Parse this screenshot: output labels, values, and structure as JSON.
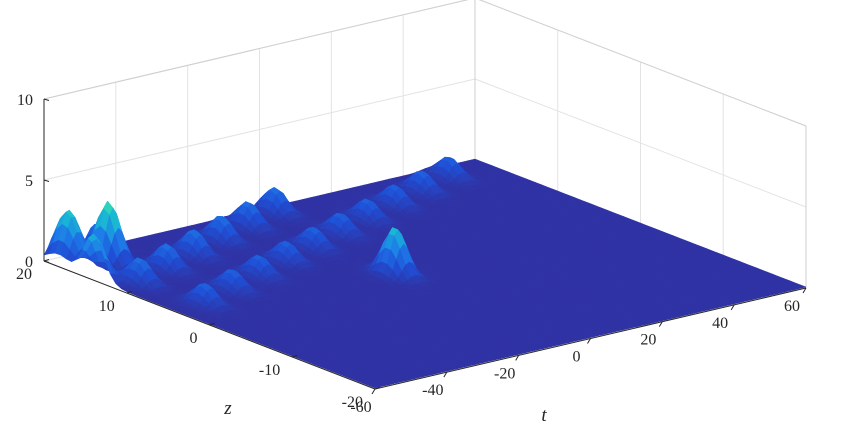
{
  "chart_data": {
    "type": "surface",
    "title": "",
    "xlabel": "t",
    "ylabel": "z",
    "zlabel": "",
    "xlim": [
      -60,
      60
    ],
    "ylim": [
      -20,
      20
    ],
    "zlim": [
      0,
      10
    ],
    "x_ticks": [
      "-60",
      "-40",
      "-20",
      "0",
      "20",
      "40",
      "60"
    ],
    "y_ticks": [
      "-20",
      "-10",
      "0",
      "10",
      "20"
    ],
    "z_ticks": [
      "0",
      "5",
      "10"
    ],
    "grid": true,
    "colormap": [
      "#3030a0",
      "#1f4fd6",
      "#1e7ce8",
      "#18b3d6",
      "#2fd7b8"
    ],
    "peaks": [
      {
        "t": -52,
        "z": 4.0,
        "amplitude": 1.3
      },
      {
        "t": -41,
        "z": 5.5,
        "amplitude": 1.3
      },
      {
        "t": -30,
        "z": 7.0,
        "amplitude": 1.3
      },
      {
        "t": -19,
        "z": 8.5,
        "amplitude": 1.3
      },
      {
        "t": -8,
        "z": 10.0,
        "amplitude": 1.3
      },
      {
        "t": 3,
        "z": 11.5,
        "amplitude": 1.3
      },
      {
        "t": 14,
        "z": 13.0,
        "amplitude": 1.3
      },
      {
        "t": 25,
        "z": 14.5,
        "amplitude": 1.3
      },
      {
        "t": 36,
        "z": 16.0,
        "amplitude": 1.3
      },
      {
        "t": 47,
        "z": 17.5,
        "amplitude": 1.3
      },
      {
        "t": -54,
        "z": 11.0,
        "amplitude": 1.6
      },
      {
        "t": -43,
        "z": 12.5,
        "amplitude": 1.6
      },
      {
        "t": -32,
        "z": 14.0,
        "amplitude": 1.6
      },
      {
        "t": -21,
        "z": 15.5,
        "amplitude": 1.6
      },
      {
        "t": -10,
        "z": 17.0,
        "amplitude": 1.6
      },
      {
        "t": 1,
        "z": 18.5,
        "amplitude": 1.6
      },
      {
        "t": -57,
        "z": 18.0,
        "amplitude": 1.6
      },
      {
        "t": -46,
        "z": 19.5,
        "amplitude": 1.6
      },
      {
        "t": -6,
        "z": 1.0,
        "amplitude": 3.0
      },
      {
        "t": -50,
        "z": 16.5,
        "amplitude": 3.8
      },
      {
        "t": -56,
        "z": 19.0,
        "amplitude": 2.0
      },
      {
        "t": -60,
        "z": 14.0,
        "amplitude": 2.8
      }
    ]
  }
}
